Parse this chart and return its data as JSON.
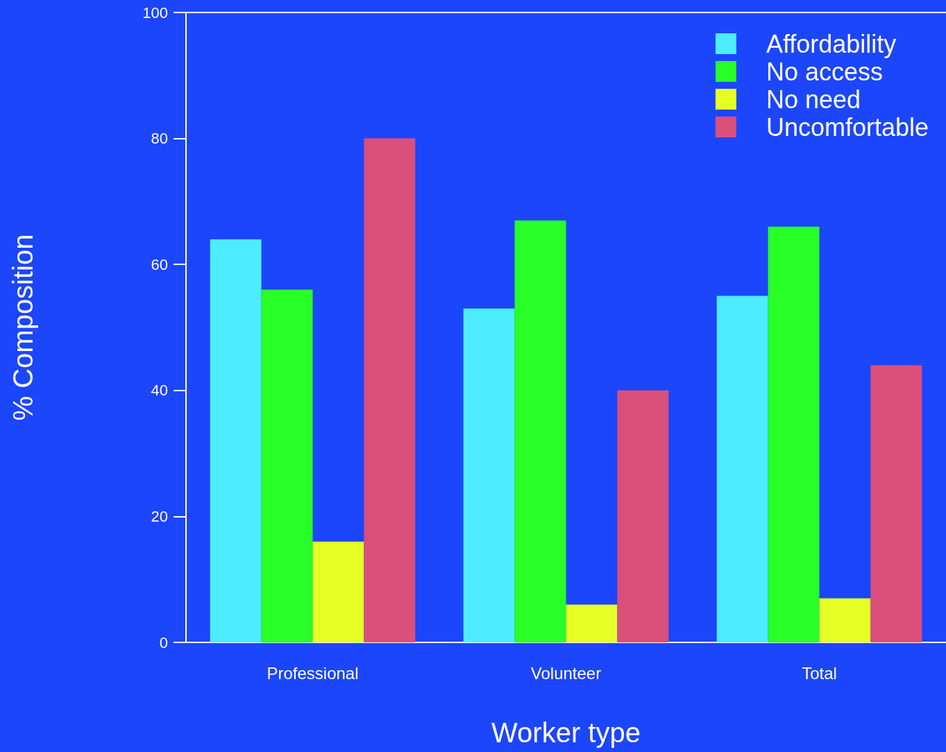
{
  "chart_data": {
    "type": "bar",
    "xlabel": "Worker type",
    "ylabel": "% Composition",
    "categories": [
      "Professional",
      "Volunteer",
      "Total"
    ],
    "series": [
      {
        "name": "Affordability",
        "color": "#4eecff",
        "values": [
          64,
          53,
          55
        ]
      },
      {
        "name": "No access",
        "color": "#27ff27",
        "values": [
          56,
          67,
          66
        ]
      },
      {
        "name": "No need",
        "color": "#e5ff24",
        "values": [
          16,
          6,
          7
        ]
      },
      {
        "name": "Uncomfortable",
        "color": "#db4f7b",
        "values": [
          80,
          40,
          44
        ]
      }
    ],
    "ylim": [
      0,
      100
    ],
    "yticks": [
      0,
      20,
      40,
      60,
      80,
      100
    ],
    "grid": false,
    "legend": "top right"
  }
}
